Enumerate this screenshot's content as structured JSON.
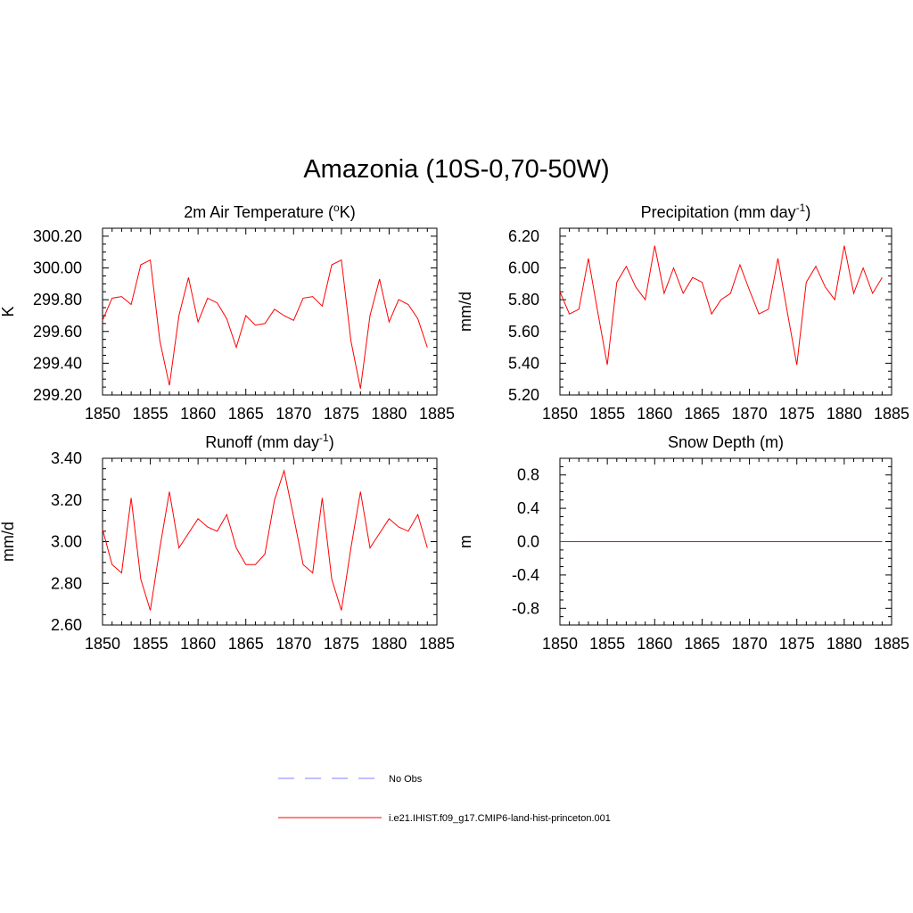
{
  "figure": {
    "title": "Amazonia (10S-0,70-50W)"
  },
  "legend": [
    {
      "label": "No Obs",
      "color": "#8080ff",
      "dash": true
    },
    {
      "label": "i.e21.IHIST.f09_g17.CMIP6-land-hist-princeton.001",
      "color": "#ff0000",
      "dash": false
    }
  ],
  "chart_data": [
    {
      "type": "line",
      "title": "2m Air Temperature (",
      "title_sup": "o",
      "title_after": "K)",
      "ylabel": "K",
      "xlim": [
        1850,
        1885
      ],
      "ylim": [
        299.2,
        300.25
      ],
      "xticks": [
        "1850",
        "1855",
        "1860",
        "1865",
        "1870",
        "1875",
        "1880",
        "1885"
      ],
      "yticks": [
        "299.20",
        "299.40",
        "299.60",
        "299.80",
        "300.00",
        "300.20"
      ],
      "ytick_values": [
        299.2,
        299.4,
        299.6,
        299.8,
        300.0,
        300.2
      ],
      "series": [
        {
          "color": "#ff0000",
          "x": [
            1850,
            1851,
            1852,
            1853,
            1854,
            1855,
            1856,
            1857,
            1858,
            1859,
            1860,
            1861,
            1862,
            1863,
            1864,
            1865,
            1866,
            1867,
            1868,
            1869,
            1870,
            1871,
            1872,
            1873,
            1874,
            1875,
            1876,
            1877,
            1878,
            1879,
            1880,
            1881,
            1882,
            1883,
            1884
          ],
          "values": [
            299.67,
            299.81,
            299.82,
            299.77,
            300.02,
            300.05,
            299.54,
            299.26,
            299.7,
            299.94,
            299.66,
            299.81,
            299.78,
            299.68,
            299.5,
            299.7,
            299.64,
            299.65,
            299.74,
            299.7,
            299.67,
            299.81,
            299.82,
            299.76,
            300.02,
            300.05,
            299.54,
            299.24,
            299.7,
            299.93,
            299.66,
            299.8,
            299.77,
            299.68,
            299.5
          ]
        }
      ]
    },
    {
      "type": "line",
      "title": "Precipitation (mm day",
      "title_sup": "-1",
      "title_after": ")",
      "ylabel": "mm/d",
      "xlim": [
        1850,
        1885
      ],
      "ylim": [
        5.2,
        6.25
      ],
      "xticks": [
        "1850",
        "1855",
        "1860",
        "1865",
        "1870",
        "1875",
        "1880",
        "1885"
      ],
      "yticks": [
        "5.20",
        "5.40",
        "5.60",
        "5.80",
        "6.00",
        "6.20"
      ],
      "ytick_values": [
        5.2,
        5.4,
        5.6,
        5.8,
        6.0,
        6.2
      ],
      "series": [
        {
          "color": "#ff0000",
          "x": [
            1850,
            1851,
            1852,
            1853,
            1854,
            1855,
            1856,
            1857,
            1858,
            1859,
            1860,
            1861,
            1862,
            1863,
            1864,
            1865,
            1866,
            1867,
            1868,
            1869,
            1870,
            1871,
            1872,
            1873,
            1874,
            1875,
            1876,
            1877,
            1878,
            1879,
            1880,
            1881,
            1882,
            1883,
            1884
          ],
          "values": [
            5.85,
            5.71,
            5.74,
            6.06,
            5.72,
            5.39,
            5.91,
            6.01,
            5.88,
            5.8,
            6.14,
            5.84,
            6.0,
            5.84,
            5.94,
            5.91,
            5.71,
            5.8,
            5.84,
            6.02,
            5.86,
            5.71,
            5.74,
            6.06,
            5.72,
            5.39,
            5.91,
            6.01,
            5.88,
            5.8,
            6.14,
            5.84,
            6.0,
            5.84,
            5.94
          ]
        }
      ]
    },
    {
      "type": "line",
      "title": "Runoff (mm day",
      "title_sup": "-1",
      "title_after": ")",
      "ylabel": "mm/d",
      "xlim": [
        1850,
        1885
      ],
      "ylim": [
        2.6,
        3.4
      ],
      "xticks": [
        "1850",
        "1855",
        "1860",
        "1865",
        "1870",
        "1875",
        "1880",
        "1885"
      ],
      "yticks": [
        "2.60",
        "2.80",
        "3.00",
        "3.20",
        "3.40"
      ],
      "ytick_values": [
        2.6,
        2.8,
        3.0,
        3.2,
        3.4
      ],
      "series": [
        {
          "color": "#ff0000",
          "x": [
            1850,
            1851,
            1852,
            1853,
            1854,
            1855,
            1856,
            1857,
            1858,
            1859,
            1860,
            1861,
            1862,
            1863,
            1864,
            1865,
            1866,
            1867,
            1868,
            1869,
            1870,
            1871,
            1872,
            1873,
            1874,
            1875,
            1876,
            1877,
            1878,
            1879,
            1880,
            1881,
            1882,
            1883,
            1884
          ],
          "values": [
            3.06,
            2.89,
            2.85,
            3.21,
            2.82,
            2.67,
            2.97,
            3.24,
            2.97,
            3.04,
            3.11,
            3.07,
            3.05,
            3.13,
            2.97,
            2.89,
            2.89,
            2.94,
            3.2,
            3.34,
            3.12,
            2.89,
            2.85,
            3.21,
            2.82,
            2.67,
            2.97,
            3.24,
            2.97,
            3.04,
            3.11,
            3.07,
            3.05,
            3.13,
            2.97
          ]
        }
      ]
    },
    {
      "type": "line",
      "title": "Snow Depth (m)",
      "title_sup": "",
      "title_after": "",
      "ylabel": "m",
      "xlim": [
        1850,
        1885
      ],
      "ylim": [
        -1.0,
        1.0
      ],
      "xticks": [
        "1850",
        "1855",
        "1860",
        "1865",
        "1870",
        "1875",
        "1880",
        "1885"
      ],
      "yticks": [
        "-0.8",
        "-0.4",
        "0.0",
        "0.4",
        "0.8"
      ],
      "ytick_values": [
        -0.8,
        -0.4,
        0.0,
        0.4,
        0.8
      ],
      "series": [
        {
          "color": "#ff0000",
          "x": [
            1850,
            1884
          ],
          "values": [
            0.0,
            0.0
          ]
        }
      ]
    }
  ]
}
